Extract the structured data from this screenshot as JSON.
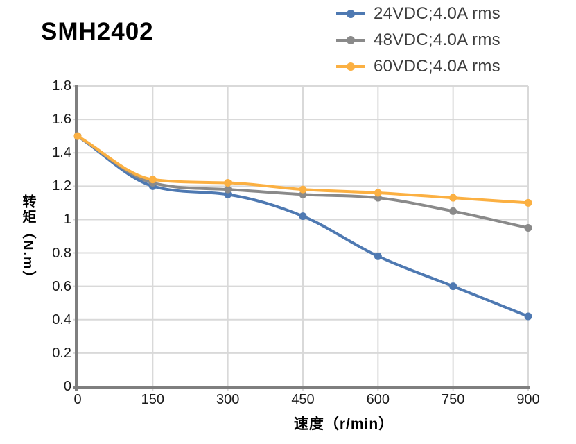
{
  "title": "SMH2402",
  "legend": {
    "items": [
      {
        "label": "24VDC;4.0A rms",
        "color": "#4E79B2"
      },
      {
        "label": "48VDC;4.0A rms",
        "color": "#8A8A8A"
      },
      {
        "label": "60VDC;4.0A rms",
        "color": "#FBB042"
      }
    ]
  },
  "chart_data": {
    "type": "line",
    "title": "SMH2402",
    "xlabel": "速度（r/min）",
    "ylabel": "转矩（N.m）",
    "x": [
      0,
      150,
      300,
      450,
      600,
      750,
      900
    ],
    "series": [
      {
        "name": "24VDC;4.0A rms",
        "color": "#4E79B2",
        "values": [
          1.5,
          1.2,
          1.15,
          1.02,
          0.78,
          0.6,
          0.42
        ]
      },
      {
        "name": "48VDC;4.0A rms",
        "color": "#8A8A8A",
        "values": [
          1.5,
          1.22,
          1.18,
          1.15,
          1.13,
          1.05,
          0.95
        ]
      },
      {
        "name": "60VDC;4.0A rms",
        "color": "#FBB042",
        "values": [
          1.5,
          1.24,
          1.22,
          1.18,
          1.16,
          1.13,
          1.1
        ]
      }
    ],
    "xlim": [
      0,
      900
    ],
    "ylim": [
      0,
      1.8
    ],
    "x_ticks": [
      "0",
      "150",
      "300",
      "450",
      "600",
      "750",
      "900"
    ],
    "y_ticks": [
      "0",
      "0.2",
      "0.4",
      "0.6",
      "0.8",
      "1",
      "1.2",
      "1.4",
      "1.6",
      "1.8"
    ],
    "grid": true,
    "smooth": true,
    "markers": true,
    "legend_position": "top-right",
    "colors": {
      "grid": "#D9D9D9",
      "axis": "#7F7F7F",
      "tick_text": "#1A1A1A",
      "legend_text": "#3D3D3D",
      "title_text": "#000000",
      "background": "#FFFFFF"
    }
  }
}
